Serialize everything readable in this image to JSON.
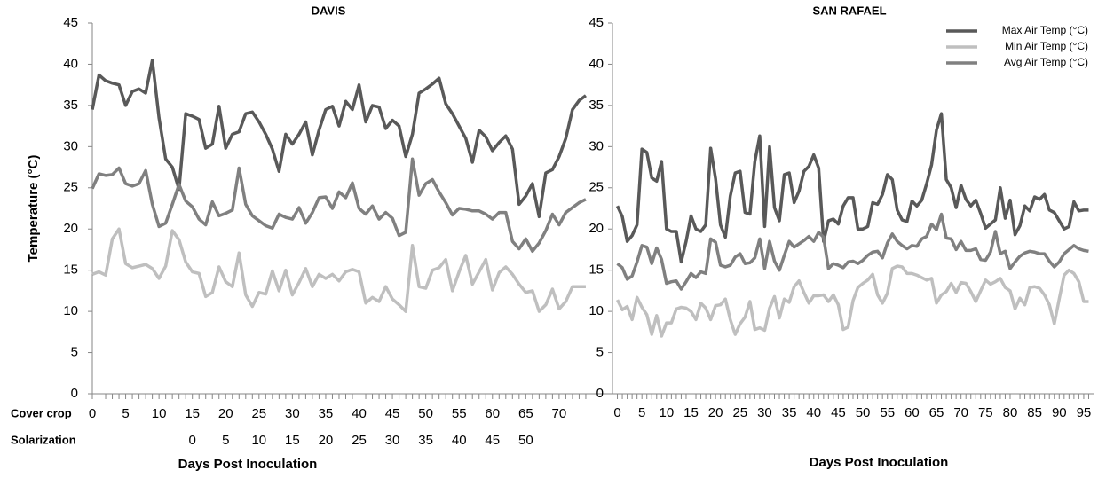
{
  "chart_data": [
    {
      "type": "line",
      "title": "DAVIS",
      "x_label": "Days Post Inoculation",
      "y_label": "Temperature (°C)",
      "xlim": [
        0,
        78
      ],
      "ylim": [
        0,
        45
      ],
      "yticks": [
        0,
        5,
        10,
        15,
        20,
        25,
        30,
        35,
        40,
        45
      ],
      "xticks_row_label": "Cover crop",
      "xticks": [
        0,
        5,
        10,
        15,
        20,
        25,
        30,
        35,
        40,
        45,
        50,
        55,
        60,
        65,
        70
      ],
      "xticks2_row_label": "Solarization",
      "xticks2": [
        {
          "value": 15,
          "label": "0"
        },
        {
          "value": 20,
          "label": "5"
        },
        {
          "value": 25,
          "label": "10"
        },
        {
          "value": 30,
          "label": "15"
        },
        {
          "value": 35,
          "label": "20"
        },
        {
          "value": 40,
          "label": "25"
        },
        {
          "value": 45,
          "label": "30"
        },
        {
          "value": 50,
          "label": "35"
        },
        {
          "value": 55,
          "label": "40"
        },
        {
          "value": 60,
          "label": "45"
        },
        {
          "value": 65,
          "label": "50"
        }
      ],
      "x": [
        0,
        1,
        2,
        3,
        4,
        5,
        6,
        7,
        8,
        9,
        10,
        11,
        12,
        13,
        14,
        15,
        16,
        17,
        18,
        19,
        20,
        21,
        22,
        23,
        24,
        25,
        26,
        27,
        28,
        29,
        30,
        31,
        32,
        33,
        34,
        35,
        36,
        37,
        38,
        39,
        40,
        41,
        42,
        43,
        44,
        45,
        46,
        47,
        48,
        49,
        50,
        51,
        52,
        53,
        54,
        55,
        56,
        57,
        58,
        59,
        60,
        61,
        62,
        63,
        64,
        65,
        66,
        67,
        68,
        69,
        70,
        71,
        72,
        73,
        74
      ],
      "series": [
        {
          "name": "Max Air Temp (°C)",
          "color": "#595959",
          "values": [
            34.5,
            38.7,
            38,
            37.7,
            37.5,
            35,
            36.7,
            37,
            36.5,
            40.5,
            33.5,
            28.5,
            27.5,
            24.8,
            34,
            33.7,
            33.3,
            29.8,
            30.3,
            34.9,
            29.8,
            31.5,
            31.8,
            34,
            34.2,
            33,
            31.5,
            29.7,
            27,
            31.5,
            30.3,
            31.5,
            33,
            29,
            32,
            34.5,
            34.9,
            32.5,
            35.5,
            34.5,
            37.5,
            33,
            35,
            34.8,
            32.2,
            33.2,
            32.5,
            28.8,
            31.5,
            36.5,
            37,
            37.6,
            38.3,
            35.2,
            34,
            32.5,
            31,
            28.1,
            32,
            31.2,
            29.5,
            30.5,
            31.3,
            29.7,
            23,
            24,
            25.5,
            21.5,
            26.8,
            27.2,
            28.8,
            31,
            34.5,
            35.6,
            36.2
          ]
        },
        {
          "name": "Min Air Temp (°C)",
          "color": "#bfbfbf",
          "values": [
            14.5,
            14.8,
            14.4,
            18.8,
            20,
            15.8,
            15.3,
            15.5,
            15.7,
            15.2,
            14,
            15.5,
            19.8,
            18.7,
            16,
            14.8,
            14.6,
            11.8,
            12.3,
            15.4,
            13.6,
            13,
            17.1,
            12,
            10.6,
            12.3,
            12.1,
            14.9,
            12.5,
            15,
            12,
            13.5,
            15.2,
            13,
            14.5,
            14,
            14.5,
            13.7,
            14.8,
            15.1,
            14.8,
            11,
            11.7,
            11.2,
            13,
            11.5,
            10.8,
            10,
            18,
            13,
            12.8,
            15,
            15.3,
            16.3,
            12.5,
            14.8,
            16.8,
            13.3,
            14.8,
            16.3,
            12.6,
            14.7,
            15.4,
            14.5,
            13.3,
            12.3,
            12.5,
            10,
            10.8,
            12.7,
            10.3,
            11.2,
            13,
            13,
            13
          ]
        },
        {
          "name": "Avg Air Temp (°C)",
          "color": "#808080",
          "values": [
            24.9,
            26.7,
            26.5,
            26.6,
            27.4,
            25.5,
            25.2,
            25.5,
            27.1,
            23,
            20.3,
            20.7,
            23,
            25.4,
            23.4,
            22.7,
            21.2,
            20.5,
            23.3,
            21.6,
            21.9,
            22.3,
            27.4,
            23,
            21.6,
            21,
            20.4,
            20.1,
            21.8,
            21.4,
            21.2,
            22.6,
            20.7,
            22,
            23.8,
            23.9,
            22.5,
            24.5,
            23.8,
            25.6,
            22.5,
            21.8,
            22.8,
            21.2,
            22,
            21.3,
            19.2,
            19.6,
            28.5,
            24.1,
            25.5,
            26,
            24.5,
            23.2,
            21.7,
            22.5,
            22.4,
            22.2,
            22.2,
            21.8,
            21.2,
            22,
            22,
            18.5,
            17.6,
            18.8,
            17.3,
            18.3,
            19.8,
            21.8,
            20.5,
            22,
            22.6,
            23.2,
            23.6
          ]
        }
      ]
    },
    {
      "type": "line",
      "title": "SAN RAFAEL",
      "x_label": "Days Post Inoculation",
      "legend": "top-right",
      "xlim": [
        -1,
        97
      ],
      "ylim": [
        0,
        45
      ],
      "yticks": [
        0,
        5,
        10,
        15,
        20,
        25,
        30,
        35,
        40,
        45
      ],
      "xticks": [
        0,
        5,
        10,
        15,
        20,
        25,
        30,
        35,
        40,
        45,
        50,
        55,
        60,
        65,
        70,
        75,
        80,
        85,
        90,
        95
      ],
      "x": [
        0,
        1,
        2,
        3,
        4,
        5,
        6,
        7,
        8,
        9,
        10,
        11,
        12,
        13,
        14,
        15,
        16,
        17,
        18,
        19,
        20,
        21,
        22,
        23,
        24,
        25,
        26,
        27,
        28,
        29,
        30,
        31,
        32,
        33,
        34,
        35,
        36,
        37,
        38,
        39,
        40,
        41,
        42,
        43,
        44,
        45,
        46,
        47,
        48,
        49,
        50,
        51,
        52,
        53,
        54,
        55,
        56,
        57,
        58,
        59,
        60,
        61,
        62,
        63,
        64,
        65,
        66,
        67,
        68,
        69,
        70,
        71,
        72,
        73,
        74,
        75,
        76,
        77,
        78,
        79,
        80,
        81,
        82,
        83,
        84,
        85,
        86,
        87,
        88,
        89,
        90,
        91,
        92,
        93,
        94,
        95,
        96
      ],
      "series": [
        {
          "name": "Max Air Temp (°C)",
          "color": "#595959",
          "values": [
            22.8,
            21.5,
            18.5,
            19.2,
            20.5,
            29.7,
            29.3,
            26.2,
            25.8,
            28.2,
            20,
            19.7,
            19.7,
            16,
            18.5,
            21.6,
            20,
            19.7,
            20.5,
            29.8,
            26.1,
            20.5,
            19,
            24,
            26.8,
            27,
            22,
            21.8,
            28.2,
            31.3,
            20.3,
            30,
            22.6,
            21,
            26.6,
            26.8,
            23.2,
            24.6,
            27,
            27.6,
            29,
            27.4,
            18.5,
            21,
            21.2,
            20.6,
            22.8,
            23.8,
            23.8,
            20,
            20,
            20.3,
            23.2,
            23,
            24.2,
            26.6,
            26,
            22.3,
            21.1,
            20.9,
            23.4,
            22.8,
            23.5,
            25.5,
            27.8,
            32,
            34,
            26,
            25,
            22.6,
            25.3,
            23.6,
            22.8,
            23.5,
            21.9,
            20.1,
            20.6,
            21.1,
            25,
            21.3,
            23.5,
            19.3,
            20.4,
            22.8,
            22.2,
            23.9,
            23.6,
            24.2,
            22.3,
            22,
            21,
            20,
            20.3,
            23.3,
            22.2,
            22.3,
            22.3
          ]
        },
        {
          "name": "Min Air Temp (°C)",
          "color": "#bfbfbf",
          "values": [
            11.4,
            10.2,
            10.6,
            9,
            11.7,
            10.5,
            9.6,
            7.2,
            9.5,
            7,
            8.6,
            8.6,
            10.3,
            10.5,
            10.4,
            10,
            9,
            11,
            10.4,
            9,
            10.7,
            10.8,
            11.5,
            9,
            7.2,
            8.5,
            9.3,
            11.2,
            7.8,
            8,
            7.7,
            10.4,
            11.8,
            9.2,
            11.5,
            11.1,
            13,
            13.7,
            12.3,
            11,
            11.9,
            11.9,
            12,
            11.2,
            12,
            10.8,
            7.8,
            8.1,
            11.3,
            12.9,
            13.4,
            13.8,
            14.5,
            12,
            11,
            12.2,
            15.2,
            15.5,
            15.4,
            14.6,
            14.6,
            14.4,
            14.1,
            13.8,
            14,
            11,
            12,
            12.4,
            13.4,
            12.3,
            13.5,
            13.4,
            12.4,
            11.2,
            12.5,
            13.8,
            13.3,
            13.6,
            14,
            12.9,
            12.5,
            10.3,
            11.6,
            10.8,
            12.9,
            13,
            12.8,
            12,
            10.8,
            8.5,
            11.5,
            14.4,
            15,
            14.6,
            13.6,
            11.2,
            11.2
          ]
        },
        {
          "name": "Avg Air Temp (°C)",
          "color": "#808080",
          "values": [
            15.8,
            15.3,
            13.9,
            14.3,
            16,
            18,
            17.8,
            15.8,
            17.7,
            16.3,
            13.4,
            13.6,
            13.7,
            12.7,
            13.6,
            14.6,
            14.1,
            14.8,
            14.6,
            18.8,
            18.4,
            15.6,
            15.4,
            15.6,
            16.6,
            17,
            15.8,
            15.9,
            16.5,
            18.8,
            15.2,
            18.5,
            16.1,
            15,
            16.8,
            18.5,
            17.8,
            18.2,
            18.6,
            19.1,
            18.5,
            19.6,
            19,
            15.2,
            15.8,
            15.6,
            15.3,
            16,
            16.1,
            15.8,
            16.2,
            16.8,
            17.2,
            17.3,
            16.5,
            18.3,
            19.4,
            18.5,
            18,
            17.6,
            18,
            17.9,
            18.8,
            19.1,
            20.6,
            19.9,
            21.8,
            18.9,
            18.8,
            17.5,
            18.5,
            17.4,
            17.4,
            17.6,
            16.3,
            16.2,
            17.2,
            19.7,
            17,
            17.3,
            15.2,
            16,
            16.7,
            17.1,
            17.3,
            17.2,
            17,
            17,
            16.1,
            15.4,
            16,
            17,
            17.5,
            18,
            17.6,
            17.4,
            17.3
          ]
        }
      ]
    }
  ]
}
